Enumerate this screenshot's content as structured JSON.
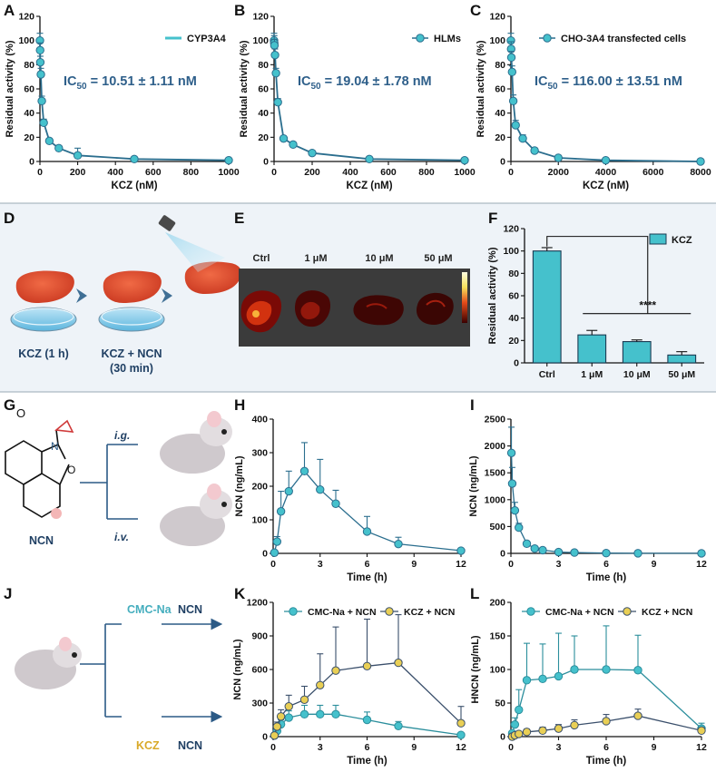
{
  "colors": {
    "teal": "#45c1cc",
    "teal_dark": "#2b6e8e",
    "blue_text": "#2e5f8a",
    "gold": "#e9cf55",
    "navy": "#1f3f63",
    "band_bg": "#eef3f8"
  },
  "panels": {
    "A": {
      "label": "A",
      "legend": "CYP3A4",
      "ic50_prefix": "IC",
      "ic50_sub": "50",
      "ic50_value": " = 10.51 ± 1.11 nM",
      "xlabel": "KCZ (nM)",
      "ylabel": "Residual activity (%)"
    },
    "B": {
      "label": "B",
      "legend": "HLMs",
      "ic50_prefix": "IC",
      "ic50_sub": "50",
      "ic50_value": " = 19.04 ± 1.78 nM",
      "xlabel": "KCZ (nM)",
      "ylabel": "Residual activity (%)"
    },
    "C": {
      "label": "C",
      "legend": "CHO-3A4 transfected cells",
      "ic50_prefix": "IC",
      "ic50_sub": "50",
      "ic50_value": " = 116.00 ± 13.51 nM",
      "xlabel": "KCZ (nM)",
      "ylabel": "Residual activity (%)"
    },
    "D": {
      "label": "D",
      "step1": "KCZ (1 h)",
      "step2_line1": "KCZ + NCN",
      "step2_line2": "(30 min)"
    },
    "E": {
      "label": "E",
      "conditions": [
        "Ctrl",
        "1 μM",
        "10 μM",
        "50 μM"
      ]
    },
    "F": {
      "label": "F",
      "legend": "KCZ",
      "significance": "****",
      "ylabel": "Residual activity (%)"
    },
    "G": {
      "label": "G",
      "compound": "NCN",
      "route1": "i.g.",
      "route2": "i.v."
    },
    "H": {
      "label": "H",
      "xlabel": "Time (h)",
      "ylabel": "NCN (ng/mL)"
    },
    "I": {
      "label": "I",
      "xlabel": "Time (h)",
      "ylabel": "NCN (ng/mL)"
    },
    "J": {
      "label": "J",
      "group1": "CMC-Na",
      "group2": "KCZ",
      "drug1": "NCN",
      "drug2": "NCN"
    },
    "K": {
      "label": "K",
      "xlabel": "Time (h)",
      "ylabel": "NCN (ng/mL)",
      "legend1": "CMC-Na + NCN",
      "legend2": "KCZ + NCN"
    },
    "L": {
      "label": "L",
      "xlabel": "Time (h)",
      "ylabel": "HNCN (ng/mL)",
      "legend1": "CMC-Na + NCN",
      "legend2": "KCZ + NCN"
    }
  },
  "chart_data": [
    {
      "id": "A",
      "type": "scatter",
      "title": "",
      "xlabel": "KCZ (nM)",
      "ylabel": "Residual activity (%)",
      "xlim": [
        0,
        1000
      ],
      "ylim": [
        0,
        120
      ],
      "xticks": [
        0,
        200,
        400,
        600,
        800,
        1000
      ],
      "yticks": [
        0,
        20,
        40,
        60,
        80,
        100,
        120
      ],
      "series": [
        {
          "name": "CYP3A4",
          "x": [
            0,
            1,
            2,
            5,
            10,
            20,
            50,
            100,
            200,
            500,
            1000
          ],
          "y": [
            100,
            92,
            82,
            72,
            50,
            32,
            17,
            11,
            5,
            2,
            1
          ],
          "err": [
            6,
            6,
            5,
            5,
            4,
            3,
            2,
            2,
            6,
            1,
            1
          ]
        }
      ]
    },
    {
      "id": "B",
      "type": "scatter",
      "title": "",
      "xlabel": "KCZ (nM)",
      "ylabel": "Residual activity (%)",
      "xlim": [
        0,
        1000
      ],
      "ylim": [
        0,
        120
      ],
      "xticks": [
        0,
        200,
        400,
        600,
        800,
        1000
      ],
      "yticks": [
        0,
        20,
        40,
        60,
        80,
        100,
        120
      ],
      "series": [
        {
          "name": "HLMs",
          "x": [
            0,
            1,
            2,
            5,
            10,
            20,
            50,
            100,
            200,
            500,
            1000
          ],
          "y": [
            100,
            98,
            96,
            88,
            73,
            49,
            19,
            14,
            7,
            2,
            1
          ],
          "err": [
            6,
            6,
            5,
            5,
            4,
            3,
            2,
            2,
            2,
            1,
            1
          ]
        }
      ]
    },
    {
      "id": "C",
      "type": "scatter",
      "title": "",
      "xlabel": "KCZ (nM)",
      "ylabel": "Residual activity (%)",
      "xlim": [
        0,
        8000
      ],
      "ylim": [
        0,
        120
      ],
      "xticks": [
        0,
        2000,
        4000,
        6000,
        8000
      ],
      "yticks": [
        0,
        20,
        40,
        60,
        80,
        100,
        120
      ],
      "series": [
        {
          "name": "CHO-3A4 transfected cells",
          "x": [
            0,
            10,
            20,
            50,
            100,
            200,
            500,
            1000,
            2000,
            4000,
            8000
          ],
          "y": [
            100,
            93,
            86,
            74,
            50,
            30,
            19,
            9,
            3,
            1,
            0
          ],
          "err": [
            6,
            6,
            5,
            5,
            5,
            4,
            3,
            2,
            1,
            1,
            1
          ]
        }
      ]
    },
    {
      "id": "F",
      "type": "bar",
      "title": "",
      "xlabel": "",
      "ylabel": "Residual activity (%)",
      "ylim": [
        0,
        120
      ],
      "yticks": [
        0,
        20,
        40,
        60,
        80,
        100,
        120
      ],
      "categories": [
        "Ctrl",
        "1 μM",
        "10 μM",
        "50 μM"
      ],
      "series": [
        {
          "name": "KCZ",
          "values": [
            100,
            25,
            19,
            7
          ],
          "err": [
            3,
            4,
            1.5,
            3
          ]
        }
      ]
    },
    {
      "id": "H",
      "type": "line",
      "title": "",
      "xlabel": "Time (h)",
      "ylabel": "NCN (ng/mL)",
      "xlim": [
        0,
        12
      ],
      "ylim": [
        0,
        400
      ],
      "xticks": [
        0,
        3,
        6,
        9,
        12
      ],
      "yticks": [
        0,
        100,
        200,
        300,
        400
      ],
      "series": [
        {
          "name": "NCN i.g.",
          "x": [
            0.083,
            0.25,
            0.5,
            1,
            2,
            3,
            4,
            6,
            8,
            12
          ],
          "y": [
            2,
            35,
            125,
            185,
            245,
            190,
            148,
            65,
            28,
            8
          ],
          "err": [
            2,
            15,
            60,
            60,
            85,
            90,
            40,
            45,
            20,
            5
          ]
        }
      ]
    },
    {
      "id": "I",
      "type": "line",
      "title": "",
      "xlabel": "Time (h)",
      "ylabel": "NCN (ng/mL)",
      "xlim": [
        0,
        12
      ],
      "ylim": [
        0,
        2500
      ],
      "xticks": [
        0,
        3,
        6,
        9,
        12
      ],
      "yticks": [
        0,
        500,
        1000,
        1500,
        2000,
        2500
      ],
      "series": [
        {
          "name": "NCN i.v.",
          "x": [
            0.033,
            0.083,
            0.25,
            0.5,
            1,
            1.5,
            2,
            3,
            4,
            6,
            8,
            12
          ],
          "y": [
            1870,
            1300,
            800,
            480,
            180,
            90,
            60,
            25,
            15,
            5,
            2,
            1
          ],
          "err": [
            480,
            300,
            150,
            80,
            30,
            15,
            10,
            5,
            3,
            2,
            1,
            1
          ]
        }
      ]
    },
    {
      "id": "K",
      "type": "line",
      "title": "",
      "xlabel": "Time (h)",
      "ylabel": "NCN (ng/mL)",
      "xlim": [
        0,
        12
      ],
      "ylim": [
        0,
        1200
      ],
      "xticks": [
        0,
        3,
        6,
        9,
        12
      ],
      "yticks": [
        0,
        300,
        600,
        900,
        1200
      ],
      "series": [
        {
          "name": "CMC-Na + NCN",
          "x": [
            0.083,
            0.25,
            0.5,
            1,
            2,
            3,
            4,
            6,
            8,
            12
          ],
          "y": [
            10,
            50,
            110,
            170,
            200,
            200,
            200,
            150,
            95,
            15
          ],
          "err": [
            5,
            20,
            40,
            60,
            80,
            80,
            80,
            70,
            40,
            10
          ]
        },
        {
          "name": "KCZ + NCN",
          "x": [
            0.083,
            0.25,
            0.5,
            1,
            2,
            3,
            4,
            6,
            8,
            12
          ],
          "y": [
            10,
            90,
            180,
            270,
            330,
            460,
            590,
            630,
            660,
            120
          ],
          "err": [
            5,
            40,
            60,
            100,
            120,
            280,
            390,
            420,
            430,
            150
          ]
        }
      ]
    },
    {
      "id": "L",
      "type": "line",
      "title": "",
      "xlabel": "Time (h)",
      "ylabel": "HNCN (ng/mL)",
      "xlim": [
        0,
        12
      ],
      "ylim": [
        0,
        200
      ],
      "xticks": [
        0,
        3,
        6,
        9,
        12
      ],
      "yticks": [
        0,
        50,
        100,
        150,
        200
      ],
      "series": [
        {
          "name": "CMC-Na + NCN",
          "x": [
            0.083,
            0.25,
            0.5,
            1,
            2,
            3,
            4,
            6,
            8,
            12
          ],
          "y": [
            5,
            18,
            40,
            84,
            86,
            90,
            100,
            100,
            99,
            12
          ],
          "err": [
            3,
            10,
            30,
            55,
            52,
            64,
            50,
            65,
            52,
            8
          ]
        },
        {
          "name": "KCZ + NCN",
          "x": [
            0.083,
            0.25,
            0.5,
            1,
            2,
            3,
            4,
            6,
            8,
            12
          ],
          "y": [
            0,
            2,
            4,
            7,
            9,
            12,
            17,
            23,
            31,
            9
          ],
          "err": [
            1,
            2,
            3,
            4,
            5,
            6,
            8,
            10,
            10,
            4
          ]
        }
      ]
    }
  ]
}
